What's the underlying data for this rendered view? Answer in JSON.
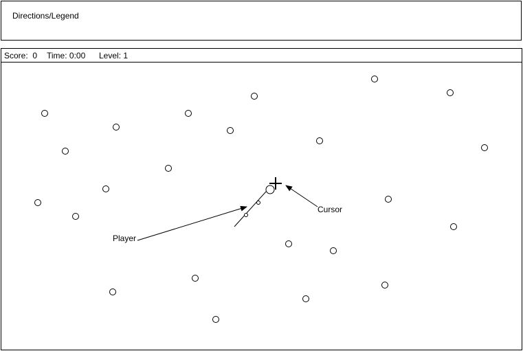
{
  "legend": {
    "title": "Directions/Legend"
  },
  "hud": {
    "score_label": "Score:",
    "score_value": "0",
    "time_label": "Time:",
    "time_value": "0:00",
    "level_label": "Level:",
    "level_value": "1"
  },
  "annotations": {
    "player_label": "Player",
    "cursor_label": "Cursor"
  },
  "icons": {
    "cursor": "crosshair-icon",
    "player": "player-snake-icon"
  },
  "colors": {
    "ink": "#000000",
    "background": "#ffffff"
  }
}
